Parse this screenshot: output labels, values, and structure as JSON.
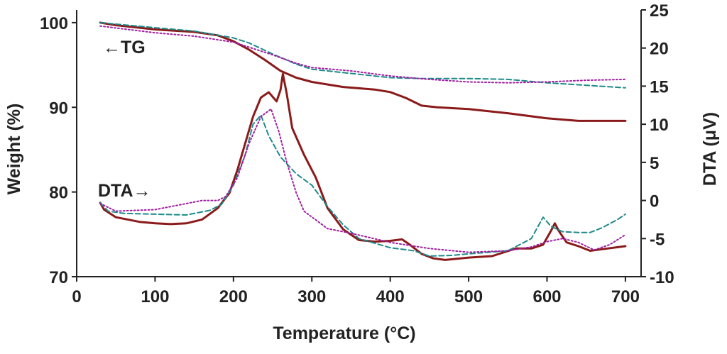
{
  "chart_data": {
    "type": "line",
    "xlabel": "Temperature (°C)",
    "ylabel_left": "Weight (%)",
    "ylabel_right": "DTA (μV)",
    "xlim": [
      0,
      720
    ],
    "ylim_left": [
      70,
      101.5
    ],
    "ylim_right": [
      -10,
      25
    ],
    "x_ticks": [
      0,
      100,
      200,
      300,
      400,
      500,
      600,
      700
    ],
    "y_left_ticks": [
      70,
      80,
      90,
      100
    ],
    "y_right_ticks": [
      -10,
      -5,
      0,
      5,
      10,
      15,
      20,
      25
    ],
    "annotations": [
      "←TG",
      "DTA→"
    ],
    "colors": {
      "solid": "#8b1a1a",
      "dashed": "#1f8a8a",
      "dotted": "#a020a0",
      "axis": "#222222"
    },
    "series": [
      {
        "name": "TG (solid)",
        "axis": "left",
        "style": "solid",
        "points": [
          [
            30,
            100
          ],
          [
            50,
            99.7
          ],
          [
            100,
            99.2
          ],
          [
            150,
            98.9
          ],
          [
            180,
            98.5
          ],
          [
            200,
            97.8
          ],
          [
            220,
            96.8
          ],
          [
            240,
            95.6
          ],
          [
            260,
            94.3
          ],
          [
            280,
            93.5
          ],
          [
            300,
            93
          ],
          [
            340,
            92.4
          ],
          [
            380,
            92.1
          ],
          [
            400,
            91.8
          ],
          [
            420,
            91.1
          ],
          [
            440,
            90.2
          ],
          [
            460,
            90
          ],
          [
            500,
            89.8
          ],
          [
            550,
            89.3
          ],
          [
            600,
            88.7
          ],
          [
            640,
            88.4
          ],
          [
            700,
            88.4
          ]
        ]
      },
      {
        "name": "TG (dashed)",
        "axis": "left",
        "style": "dashed",
        "points": [
          [
            30,
            100
          ],
          [
            100,
            99.4
          ],
          [
            150,
            99
          ],
          [
            200,
            98.2
          ],
          [
            220,
            97.6
          ],
          [
            250,
            96.3
          ],
          [
            280,
            95.1
          ],
          [
            300,
            94.5
          ],
          [
            350,
            94
          ],
          [
            400,
            93.5
          ],
          [
            440,
            93.4
          ],
          [
            500,
            93.4
          ],
          [
            550,
            93.3
          ],
          [
            600,
            92.9
          ],
          [
            650,
            92.6
          ],
          [
            700,
            92.3
          ]
        ]
      },
      {
        "name": "TG (dotted)",
        "axis": "left",
        "style": "dotted",
        "points": [
          [
            30,
            99.6
          ],
          [
            100,
            98.8
          ],
          [
            150,
            98.4
          ],
          [
            200,
            97.7
          ],
          [
            250,
            96.2
          ],
          [
            280,
            95.2
          ],
          [
            300,
            94.7
          ],
          [
            350,
            94.3
          ],
          [
            400,
            93.7
          ],
          [
            450,
            93.3
          ],
          [
            500,
            93
          ],
          [
            550,
            92.9
          ],
          [
            600,
            93
          ],
          [
            650,
            93.2
          ],
          [
            700,
            93.3
          ]
        ]
      },
      {
        "name": "DTA (solid)",
        "axis": "right",
        "style": "solid",
        "points": [
          [
            30,
            -0.3
          ],
          [
            35,
            -1.2
          ],
          [
            50,
            -2.2
          ],
          [
            80,
            -2.8
          ],
          [
            100,
            -3
          ],
          [
            120,
            -3.1
          ],
          [
            140,
            -3
          ],
          [
            160,
            -2.5
          ],
          [
            180,
            -1
          ],
          [
            195,
            1
          ],
          [
            205,
            4
          ],
          [
            215,
            7.5
          ],
          [
            225,
            11
          ],
          [
            235,
            13.5
          ],
          [
            245,
            14.2
          ],
          [
            255,
            13
          ],
          [
            260,
            14.5
          ],
          [
            263,
            16.6
          ],
          [
            268,
            14
          ],
          [
            275,
            9.5
          ],
          [
            290,
            6
          ],
          [
            305,
            3
          ],
          [
            320,
            -1
          ],
          [
            340,
            -3.8
          ],
          [
            360,
            -5.2
          ],
          [
            380,
            -5.4
          ],
          [
            400,
            -5.3
          ],
          [
            415,
            -5.1
          ],
          [
            425,
            -5.8
          ],
          [
            440,
            -7
          ],
          [
            455,
            -7.6
          ],
          [
            470,
            -7.8
          ],
          [
            500,
            -7.5
          ],
          [
            530,
            -7.3
          ],
          [
            560,
            -6.3
          ],
          [
            580,
            -6.3
          ],
          [
            595,
            -5.8
          ],
          [
            605,
            -4
          ],
          [
            610,
            -3
          ],
          [
            615,
            -4
          ],
          [
            625,
            -5.5
          ],
          [
            640,
            -6
          ],
          [
            655,
            -6.6
          ],
          [
            670,
            -6.4
          ],
          [
            700,
            -6
          ]
        ]
      },
      {
        "name": "DTA (dashed)",
        "axis": "right",
        "style": "dashed",
        "points": [
          [
            30,
            -0.3
          ],
          [
            40,
            -1.4
          ],
          [
            60,
            -1.7
          ],
          [
            100,
            -1.8
          ],
          [
            140,
            -1.9
          ],
          [
            170,
            -1.3
          ],
          [
            185,
            -0.5
          ],
          [
            200,
            2
          ],
          [
            215,
            6
          ],
          [
            225,
            10
          ],
          [
            235,
            11.2
          ],
          [
            245,
            8.5
          ],
          [
            260,
            5.7
          ],
          [
            280,
            3.5
          ],
          [
            300,
            2
          ],
          [
            320,
            -0.8
          ],
          [
            340,
            -3.2
          ],
          [
            360,
            -5
          ],
          [
            400,
            -6.2
          ],
          [
            430,
            -6.6
          ],
          [
            450,
            -7.3
          ],
          [
            480,
            -7.2
          ],
          [
            500,
            -7
          ],
          [
            550,
            -6.6
          ],
          [
            580,
            -5
          ],
          [
            595,
            -2.2
          ],
          [
            605,
            -3.4
          ],
          [
            620,
            -4.1
          ],
          [
            640,
            -4.2
          ],
          [
            655,
            -4.2
          ],
          [
            670,
            -3.6
          ],
          [
            690,
            -2.5
          ],
          [
            700,
            -1.8
          ]
        ]
      },
      {
        "name": "DTA (dotted)",
        "axis": "right",
        "style": "dotted",
        "points": [
          [
            30,
            -0.4
          ],
          [
            50,
            -1.4
          ],
          [
            100,
            -1.2
          ],
          [
            140,
            -0.4
          ],
          [
            160,
            0
          ],
          [
            180,
            0
          ],
          [
            190,
            0.5
          ],
          [
            205,
            3
          ],
          [
            220,
            7.5
          ],
          [
            235,
            11
          ],
          [
            248,
            12
          ],
          [
            258,
            9
          ],
          [
            268,
            5
          ],
          [
            280,
            1
          ],
          [
            290,
            -1.4
          ],
          [
            320,
            -3.7
          ],
          [
            350,
            -4.3
          ],
          [
            400,
            -5.5
          ],
          [
            450,
            -6.3
          ],
          [
            500,
            -6.8
          ],
          [
            550,
            -6.6
          ],
          [
            580,
            -6.1
          ],
          [
            600,
            -5.4
          ],
          [
            620,
            -5
          ],
          [
            640,
            -5.5
          ],
          [
            660,
            -6.5
          ],
          [
            680,
            -5.8
          ],
          [
            700,
            -4.5
          ]
        ]
      }
    ]
  }
}
